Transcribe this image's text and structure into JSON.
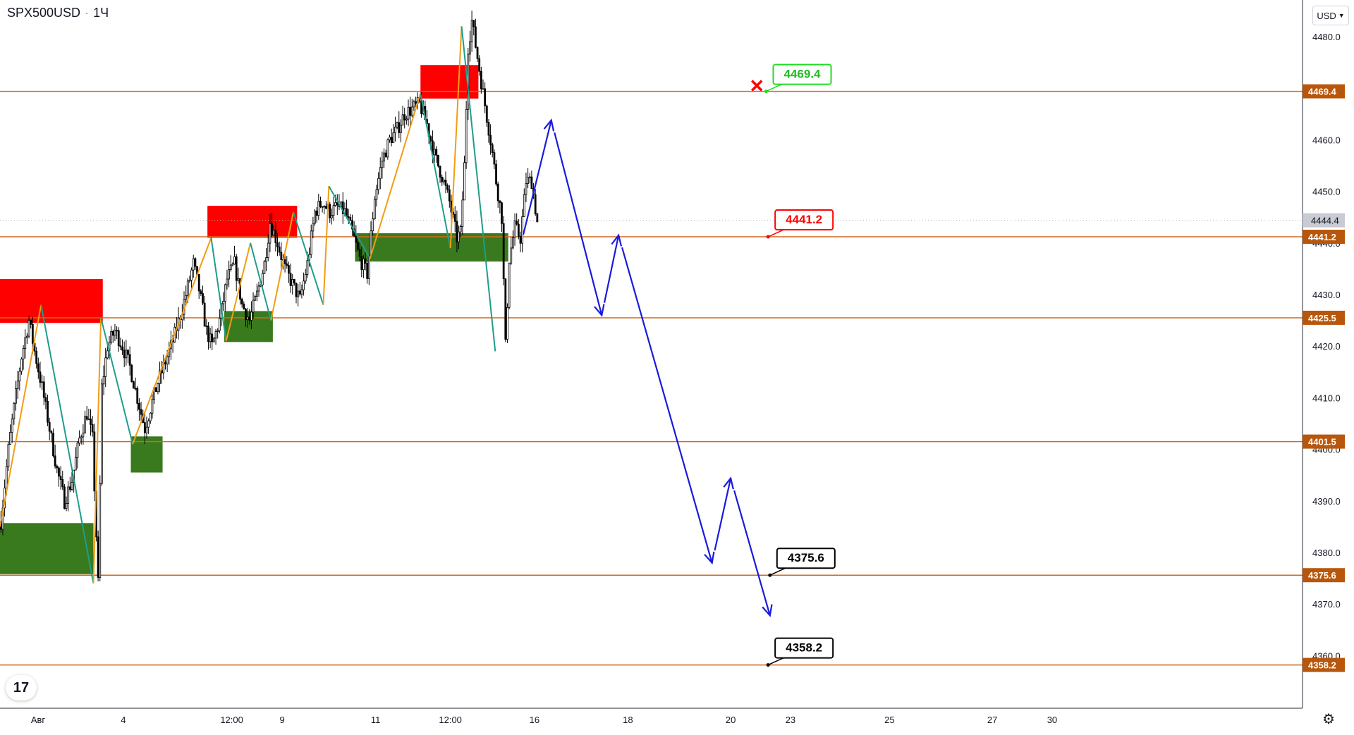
{
  "header": {
    "symbol": "SPX500USD",
    "interval": "1Ч",
    "currency": "USD"
  },
  "colors": {
    "level_line": "#d2691e",
    "supply_zone": "#ff0000",
    "demand_zone": "#3a7a1e",
    "zigzag_up": "#f39c12",
    "zigzag_down": "#1f9d8b",
    "forecast": "#1a1adc",
    "candle": "#000000"
  },
  "icons": {
    "logo": "tradingview-logo-icon",
    "settings": "gear-icon",
    "target_hit": "red-x-icon"
  },
  "chart_data": {
    "type": "candlestick",
    "symbol": "SPX500USD",
    "interval": "1Ч",
    "ylim": [
      4346,
      4486
    ],
    "y_ticks": [
      4360.0,
      4370.0,
      4380.0,
      4390.0,
      4400.0,
      4410.0,
      4420.0,
      4430.0,
      4440.0,
      4450.0,
      4460.0,
      4480.0
    ],
    "x_ticks": [
      "Авг",
      "4",
      "12:00",
      "9",
      "11",
      "12:00",
      "16",
      "18",
      "20",
      "23",
      "25",
      "27",
      "30"
    ],
    "last_price": "4444.4",
    "price_path": [
      [
        0,
        4386
      ],
      [
        4,
        4400
      ],
      [
        7,
        4408
      ],
      [
        11,
        4418
      ],
      [
        15,
        4425
      ],
      [
        18,
        4419
      ],
      [
        22,
        4412
      ],
      [
        26,
        4404
      ],
      [
        30,
        4396
      ],
      [
        34,
        4390
      ],
      [
        38,
        4394
      ],
      [
        42,
        4402
      ],
      [
        46,
        4407
      ],
      [
        49,
        4402
      ],
      [
        52,
        4374
      ],
      [
        54,
        4412
      ],
      [
        57,
        4420
      ],
      [
        61,
        4423
      ],
      [
        65,
        4420
      ],
      [
        69,
        4416
      ],
      [
        73,
        4410
      ],
      [
        77,
        4404
      ],
      [
        80,
        4408
      ],
      [
        84,
        4413
      ],
      [
        88,
        4417
      ],
      [
        92,
        4421
      ],
      [
        96,
        4426
      ],
      [
        99,
        4430
      ],
      [
        103,
        4436
      ],
      [
        106,
        4431
      ],
      [
        110,
        4423
      ],
      [
        113,
        4420
      ],
      [
        117,
        4425
      ],
      [
        121,
        4433
      ],
      [
        125,
        4436
      ],
      [
        129,
        4428
      ],
      [
        133,
        4425
      ],
      [
        137,
        4430
      ],
      [
        141,
        4436
      ],
      [
        144,
        4444
      ],
      [
        148,
        4440
      ],
      [
        152,
        4435
      ],
      [
        156,
        4432
      ],
      [
        160,
        4429
      ],
      [
        164,
        4436
      ],
      [
        168,
        4446
      ],
      [
        172,
        4448
      ],
      [
        176,
        4446
      ],
      [
        180,
        4447
      ],
      [
        184,
        4446
      ],
      [
        188,
        4442
      ],
      [
        192,
        4437
      ],
      [
        196,
        4434
      ],
      [
        200,
        4449
      ],
      [
        204,
        4456
      ],
      [
        208,
        4460
      ],
      [
        212,
        4462
      ],
      [
        216,
        4465
      ],
      [
        220,
        4466
      ],
      [
        224,
        4467
      ],
      [
        228,
        4463
      ],
      [
        232,
        4457
      ],
      [
        236,
        4453
      ],
      [
        240,
        4448
      ],
      [
        244,
        4441
      ],
      [
        246,
        4442
      ],
      [
        248,
        4455
      ],
      [
        250,
        4478
      ],
      [
        252,
        4483
      ],
      [
        255,
        4476
      ],
      [
        258,
        4469
      ],
      [
        262,
        4460
      ],
      [
        265,
        4452
      ],
      [
        268,
        4445
      ],
      [
        270,
        4420
      ],
      [
        272,
        4437
      ],
      [
        275,
        4443
      ],
      [
        278,
        4441
      ],
      [
        281,
        4452
      ],
      [
        284,
        4452
      ],
      [
        287,
        4444
      ]
    ],
    "levels": [
      "4469.4",
      "4441.2",
      "4425.5",
      "4401.5",
      "4375.6",
      "4358.2"
    ],
    "supply_zones": [
      [
        0,
        55,
        4424.5,
        4433.0
      ],
      [
        111,
        159,
        4441.0,
        4447.2
      ],
      [
        225,
        256,
        4468.0,
        4474.5
      ]
    ],
    "demand_zones": [
      [
        0,
        50,
        4375.8,
        4385.7
      ],
      [
        70,
        87,
        4395.5,
        4402.5
      ],
      [
        120,
        146,
        4420.8,
        4426.8
      ],
      [
        190,
        272,
        4436.4,
        4441.9
      ]
    ],
    "zigzag": [
      [
        0,
        4385,
        "up"
      ],
      [
        22,
        4428,
        "down"
      ],
      [
        50,
        4374,
        "up"
      ],
      [
        54,
        4425.5,
        "down"
      ],
      [
        71,
        4401,
        "up"
      ],
      [
        113,
        4441,
        "down"
      ],
      [
        121,
        4421,
        "up"
      ],
      [
        134,
        4440,
        "down"
      ],
      [
        145,
        4425,
        "up"
      ],
      [
        157,
        4446,
        "down"
      ],
      [
        173,
        4428,
        "up"
      ],
      [
        176,
        4451,
        "down"
      ],
      [
        198,
        4437,
        "up"
      ],
      [
        225,
        4469,
        "down"
      ],
      [
        241,
        4439,
        "up"
      ],
      [
        247,
        4482,
        "down"
      ],
      [
        265,
        4419,
        "up"
      ]
    ],
    "forecast_path": [
      [
        280,
        4441.6
      ],
      [
        295,
        4463.8
      ],
      [
        322,
        4426
      ],
      [
        331,
        4441.5
      ],
      [
        381,
        4378
      ],
      [
        391,
        4394.4
      ],
      [
        412,
        4367.8
      ]
    ],
    "forecast_arrow_from": [
      [
        295,
        4463.8
      ],
      [
        322,
        4426
      ],
      [
        331,
        4441.5
      ],
      [
        381,
        4378
      ],
      [
        391,
        4394.4
      ],
      [
        412,
        4367.8
      ]
    ],
    "callouts": [
      {
        "label": "4469.4",
        "color": "#22dd22",
        "text_color": "#22bb22",
        "at": [
          410,
          4469.4
        ]
      },
      {
        "label": "4441.2",
        "color": "#ff0000",
        "text_color": "#ff0000",
        "at": [
          411,
          4441.2
        ]
      },
      {
        "label": "4375.6",
        "color": "#000000",
        "text_color": "#000000",
        "at": [
          412,
          4375.6
        ]
      },
      {
        "label": "4358.2",
        "color": "#000000",
        "text_color": "#000000",
        "at": [
          411,
          4358.2
        ]
      }
    ],
    "target_hit_marker": [
      405,
      4470.5
    ]
  }
}
